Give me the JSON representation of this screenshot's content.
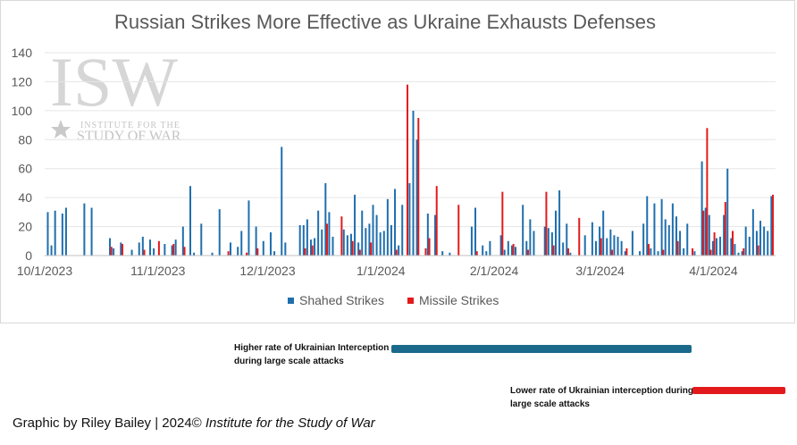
{
  "chart_data": {
    "type": "bar",
    "title": "Russian Strikes More Effective as Ukraine Exhausts Defenses",
    "y_ticks": [
      "0",
      "20",
      "40",
      "60",
      "80",
      "100",
      "120",
      "140"
    ],
    "ylim": [
      0,
      140
    ],
    "x_tick_labels": [
      "10/1/2023",
      "11/1/2023",
      "12/1/2023",
      "1/1/2024",
      "2/1/2024",
      "3/1/2024",
      "4/1/2024"
    ],
    "x_tick_dates": [
      "2023-10-01",
      "2023-11-01",
      "2023-12-01",
      "2024-01-01",
      "2024-02-01",
      "2024-03-01",
      "2024-04-01"
    ],
    "x_range": [
      "2023-10-01",
      "2024-04-11"
    ],
    "grid": "horizontal",
    "legend": "bottom",
    "series": [
      {
        "name": "Shahed Strikes",
        "color": "#1f6fae",
        "points": [
          [
            "2023-10-02",
            30
          ],
          [
            "2023-10-03",
            7
          ],
          [
            "2023-10-04",
            31
          ],
          [
            "2023-10-06",
            29
          ],
          [
            "2023-10-07",
            33
          ],
          [
            "2023-10-12",
            36
          ],
          [
            "2023-10-14",
            33
          ],
          [
            "2023-10-19",
            12
          ],
          [
            "2023-10-20",
            5
          ],
          [
            "2023-10-22",
            9
          ],
          [
            "2023-10-25",
            4
          ],
          [
            "2023-10-27",
            9
          ],
          [
            "2023-10-28",
            13
          ],
          [
            "2023-10-30",
            11
          ],
          [
            "2023-10-31",
            5
          ],
          [
            "2023-11-03",
            8
          ],
          [
            "2023-11-05",
            7
          ],
          [
            "2023-11-06",
            11
          ],
          [
            "2023-11-08",
            20
          ],
          [
            "2023-11-10",
            48
          ],
          [
            "2023-11-11",
            2
          ],
          [
            "2023-11-13",
            22
          ],
          [
            "2023-11-16",
            2
          ],
          [
            "2023-11-18",
            32
          ],
          [
            "2023-11-21",
            9
          ],
          [
            "2023-11-23",
            6
          ],
          [
            "2023-11-24",
            17
          ],
          [
            "2023-11-26",
            38
          ],
          [
            "2023-11-28",
            20
          ],
          [
            "2023-11-30",
            10
          ],
          [
            "2023-12-02",
            16
          ],
          [
            "2023-12-03",
            3
          ],
          [
            "2023-12-05",
            75
          ],
          [
            "2023-12-06",
            9
          ],
          [
            "2023-12-10",
            21
          ],
          [
            "2023-12-11",
            21
          ],
          [
            "2023-12-12",
            25
          ],
          [
            "2023-12-13",
            11
          ],
          [
            "2023-12-14",
            12
          ],
          [
            "2023-12-15",
            31
          ],
          [
            "2023-12-16",
            18
          ],
          [
            "2023-12-17",
            50
          ],
          [
            "2023-12-18",
            30
          ],
          [
            "2023-12-19",
            13
          ],
          [
            "2023-12-22",
            18
          ],
          [
            "2023-12-23",
            14
          ],
          [
            "2023-12-24",
            15
          ],
          [
            "2023-12-25",
            42
          ],
          [
            "2023-12-26",
            9
          ],
          [
            "2023-12-27",
            31
          ],
          [
            "2023-12-28",
            19
          ],
          [
            "2023-12-29",
            22
          ],
          [
            "2023-12-30",
            35
          ],
          [
            "2023-12-31",
            28
          ],
          [
            "2024-01-01",
            16
          ],
          [
            "2024-01-02",
            17
          ],
          [
            "2024-01-03",
            39
          ],
          [
            "2024-01-04",
            21
          ],
          [
            "2024-01-05",
            46
          ],
          [
            "2024-01-06",
            7
          ],
          [
            "2024-01-07",
            35
          ],
          [
            "2024-01-09",
            50
          ],
          [
            "2024-01-10",
            100
          ],
          [
            "2024-01-11",
            80
          ],
          [
            "2024-01-14",
            29
          ],
          [
            "2024-01-16",
            28
          ],
          [
            "2024-01-18",
            3
          ],
          [
            "2024-01-20",
            2
          ],
          [
            "2024-01-26",
            20
          ],
          [
            "2024-01-27",
            33
          ],
          [
            "2024-01-29",
            7
          ],
          [
            "2024-01-30",
            3
          ],
          [
            "2024-01-31",
            10
          ],
          [
            "2024-02-03",
            14
          ],
          [
            "2024-02-04",
            4
          ],
          [
            "2024-02-05",
            10
          ],
          [
            "2024-02-06",
            7
          ],
          [
            "2024-02-07",
            6
          ],
          [
            "2024-02-09",
            35
          ],
          [
            "2024-02-10",
            10
          ],
          [
            "2024-02-11",
            25
          ],
          [
            "2024-02-12",
            17
          ],
          [
            "2024-02-15",
            20
          ],
          [
            "2024-02-16",
            19
          ],
          [
            "2024-02-17",
            16
          ],
          [
            "2024-02-18",
            31
          ],
          [
            "2024-02-19",
            45
          ],
          [
            "2024-02-20",
            9
          ],
          [
            "2024-02-21",
            22
          ],
          [
            "2024-02-22",
            2
          ],
          [
            "2024-02-26",
            14
          ],
          [
            "2024-02-28",
            23
          ],
          [
            "2024-02-29",
            10
          ],
          [
            "2024-03-01",
            20
          ],
          [
            "2024-03-02",
            31
          ],
          [
            "2024-03-03",
            12
          ],
          [
            "2024-03-04",
            18
          ],
          [
            "2024-03-05",
            14
          ],
          [
            "2024-03-06",
            13
          ],
          [
            "2024-03-07",
            10
          ],
          [
            "2024-03-08",
            3
          ],
          [
            "2024-03-10",
            17
          ],
          [
            "2024-03-12",
            3
          ],
          [
            "2024-03-13",
            22
          ],
          [
            "2024-03-14",
            41
          ],
          [
            "2024-03-15",
            5
          ],
          [
            "2024-03-16",
            36
          ],
          [
            "2024-03-17",
            3
          ],
          [
            "2024-03-18",
            39
          ],
          [
            "2024-03-19",
            25
          ],
          [
            "2024-03-20",
            21
          ],
          [
            "2024-03-21",
            36
          ],
          [
            "2024-03-22",
            27
          ],
          [
            "2024-03-23",
            17
          ],
          [
            "2024-03-24",
            5
          ],
          [
            "2024-03-25",
            22
          ],
          [
            "2024-03-27",
            3
          ],
          [
            "2024-03-29",
            65
          ],
          [
            "2024-03-30",
            33
          ],
          [
            "2024-03-31",
            28
          ],
          [
            "2024-04-01",
            10
          ],
          [
            "2024-04-02",
            12
          ],
          [
            "2024-04-03",
            13
          ],
          [
            "2024-04-04",
            28
          ],
          [
            "2024-04-05",
            60
          ],
          [
            "2024-04-06",
            12
          ],
          [
            "2024-04-07",
            8
          ],
          [
            "2024-04-08",
            2
          ],
          [
            "2024-04-09",
            3
          ],
          [
            "2024-04-10",
            20
          ],
          [
            "2024-04-11",
            13
          ],
          [
            "2024-04-12",
            32
          ],
          [
            "2024-04-13",
            17
          ],
          [
            "2024-04-14",
            24
          ],
          [
            "2024-04-15",
            20
          ],
          [
            "2024-04-16",
            17
          ],
          [
            "2024-04-17",
            41
          ]
        ]
      },
      {
        "name": "Missile Strikes",
        "color": "#e31a1c",
        "points": [
          [
            "2023-10-19",
            6
          ],
          [
            "2023-10-22",
            8
          ],
          [
            "2023-10-28",
            4
          ],
          [
            "2023-11-01",
            10
          ],
          [
            "2023-11-05",
            8
          ],
          [
            "2023-11-08",
            6
          ],
          [
            "2023-11-20",
            3
          ],
          [
            "2023-11-25",
            2
          ],
          [
            "2023-11-28",
            5
          ],
          [
            "2023-12-11",
            5
          ],
          [
            "2023-12-13",
            7
          ],
          [
            "2023-12-17",
            22
          ],
          [
            "2023-12-21",
            27
          ],
          [
            "2023-12-24",
            10
          ],
          [
            "2023-12-26",
            4
          ],
          [
            "2023-12-29",
            9
          ],
          [
            "2024-01-05",
            4
          ],
          [
            "2024-01-08",
            118
          ],
          [
            "2024-01-11",
            95
          ],
          [
            "2024-01-13",
            5
          ],
          [
            "2024-01-14",
            12
          ],
          [
            "2024-01-16",
            48
          ],
          [
            "2024-01-22",
            35
          ],
          [
            "2024-01-27",
            3
          ],
          [
            "2024-02-03",
            44
          ],
          [
            "2024-02-06",
            8
          ],
          [
            "2024-02-10",
            4
          ],
          [
            "2024-02-15",
            44
          ],
          [
            "2024-02-17",
            7
          ],
          [
            "2024-02-21",
            5
          ],
          [
            "2024-02-24",
            26
          ],
          [
            "2024-03-01",
            12
          ],
          [
            "2024-03-04",
            4
          ],
          [
            "2024-03-08",
            5
          ],
          [
            "2024-03-14",
            8
          ],
          [
            "2024-03-18",
            4
          ],
          [
            "2024-03-22",
            10
          ],
          [
            "2024-03-26",
            5
          ],
          [
            "2024-03-29",
            31
          ],
          [
            "2024-03-30",
            88
          ],
          [
            "2024-03-31",
            4
          ],
          [
            "2024-04-01",
            16
          ],
          [
            "2024-04-04",
            37
          ],
          [
            "2024-04-06",
            17
          ],
          [
            "2024-04-09",
            5
          ],
          [
            "2024-04-13",
            7
          ],
          [
            "2024-04-17",
            42
          ]
        ]
      }
    ]
  },
  "annotations": {
    "higher": {
      "text_line1": "Higher rate of Ukrainian Interception",
      "text_line2": "during large scale attacks",
      "color": "#1b6a8c"
    },
    "lower": {
      "text_line1": "Lower rate of Ukrainian interception during",
      "text_line2": "large scale attacks",
      "color": "#e31a1c"
    }
  },
  "credit": {
    "text": "Graphic by Riley Bailey | 2024© ",
    "org": "Institute for the Study of War"
  },
  "watermark": {
    "logo": "ISW",
    "line1": "INSTITUTE FOR THE",
    "line2": "STUDY OF WAR"
  }
}
